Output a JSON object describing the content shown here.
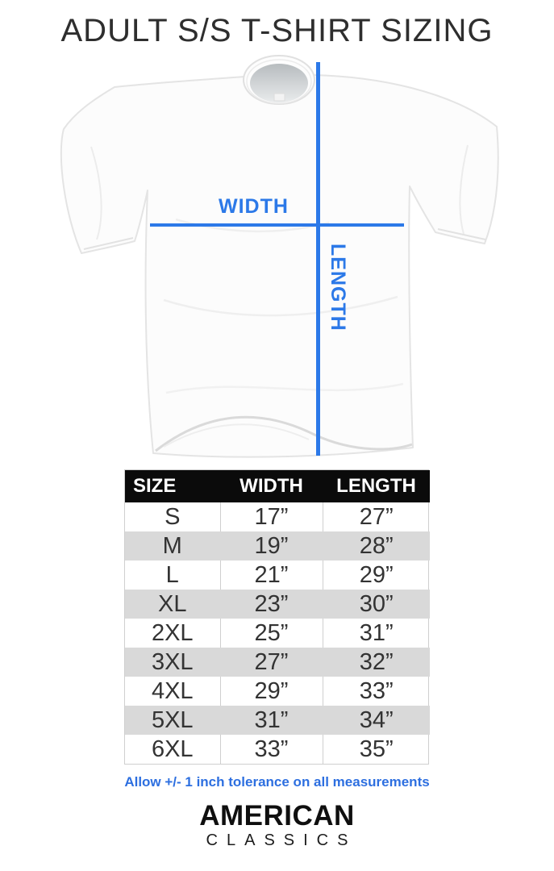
{
  "title": "ADULT S/S T-SHIRT SIZING",
  "colors": {
    "accent": "#2c79e8",
    "accent2": "#2d6fe0",
    "row_alt": "#d9d9d9",
    "header_bg": "#0b0b0b"
  },
  "diagram": {
    "width_label": "WIDTH",
    "length_label": "LENGTH"
  },
  "table": {
    "columns": [
      "SIZE",
      "WIDTH",
      "LENGTH"
    ],
    "rows": [
      [
        "S",
        "17”",
        "27”"
      ],
      [
        "M",
        "19”",
        "28”"
      ],
      [
        "L",
        "21”",
        "29”"
      ],
      [
        "XL",
        "23”",
        "30”"
      ],
      [
        "2XL",
        "25”",
        "31”"
      ],
      [
        "3XL",
        "27”",
        "32”"
      ],
      [
        "4XL",
        "29”",
        "33”"
      ],
      [
        "5XL",
        "31”",
        "34”"
      ],
      [
        "6XL",
        "33”",
        "35”"
      ]
    ]
  },
  "footnote": "Allow +/- 1 inch tolerance on all measurements",
  "logo": {
    "line1": "AMERICAN",
    "line2": "CLASSICS"
  }
}
